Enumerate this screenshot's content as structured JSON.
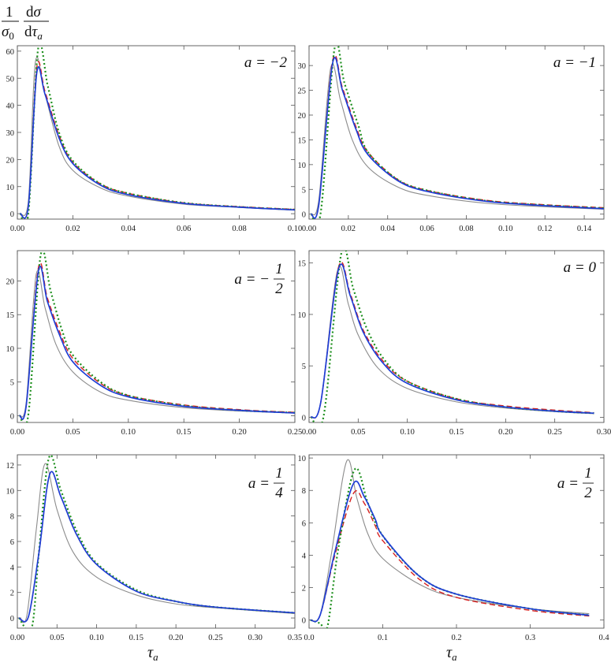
{
  "figure": {
    "ylabel": "1/σ0 dσ/dτa",
    "xlabel": "τa"
  },
  "colors": {
    "gray": "#8c8c8c",
    "red": "#d62020",
    "blue": "#1f3fd6",
    "green": "#1d8f1d"
  },
  "chart_data": [
    {
      "type": "line",
      "panel_label": "a = −2",
      "xlim": [
        0,
        0.1
      ],
      "ylim": [
        -2,
        62
      ],
      "xticks": [
        0.0,
        0.02,
        0.04,
        0.06,
        0.08,
        0.1
      ],
      "xtick_labels": [
        "0.00",
        "0.02",
        "0.04",
        "0.06",
        "0.08",
        "0.10"
      ],
      "yticks": [
        0,
        10,
        20,
        30,
        40,
        50,
        60
      ],
      "series": [
        {
          "color": "gray",
          "style": "solid",
          "x": [
            0.001,
            0.004,
            0.0065,
            0.01,
            0.015,
            0.02,
            0.03,
            0.04,
            0.06,
            0.08,
            0.1
          ],
          "y": [
            0,
            5,
            56,
            44,
            25,
            16,
            9.5,
            6.5,
            3.5,
            2.3,
            1.3
          ]
        },
        {
          "color": "red",
          "style": "dashed",
          "x": [
            0.001,
            0.004,
            0.007,
            0.01,
            0.015,
            0.02,
            0.03,
            0.04,
            0.06,
            0.08,
            0.1
          ],
          "y": [
            0,
            3,
            54,
            45,
            29,
            19,
            11,
            7.5,
            4,
            2.6,
            1.6
          ]
        },
        {
          "color": "blue",
          "style": "solid",
          "x": [
            0.001,
            0.004,
            0.007,
            0.01,
            0.015,
            0.02,
            0.03,
            0.04,
            0.06,
            0.08,
            0.1
          ],
          "y": [
            0,
            3,
            52,
            44,
            28,
            18.5,
            10.5,
            7,
            3.8,
            2.4,
            1.4
          ]
        },
        {
          "color": "green",
          "style": "dotted",
          "x": [
            0.001,
            0.004,
            0.0075,
            0.011,
            0.015,
            0.02,
            0.03,
            0.04,
            0.06,
            0.08,
            0.1
          ],
          "y": [
            0,
            0.5,
            61,
            47,
            30,
            19.5,
            11,
            7.5,
            4,
            2.5,
            1.5
          ]
        }
      ]
    },
    {
      "type": "line",
      "panel_label": "a = −1",
      "xlim": [
        0,
        0.15
      ],
      "ylim": [
        -1,
        34
      ],
      "xticks": [
        0.0,
        0.02,
        0.04,
        0.06,
        0.08,
        0.1,
        0.12,
        0.14
      ],
      "xtick_labels": [
        "0.00",
        "0.02",
        "0.04",
        "0.06",
        "0.08",
        "0.10",
        "0.12",
        "0.14"
      ],
      "yticks": [
        0,
        5,
        10,
        15,
        20,
        25,
        30
      ],
      "series": [
        {
          "color": "gray",
          "style": "solid",
          "x": [
            0.001,
            0.005,
            0.011,
            0.016,
            0.022,
            0.03,
            0.045,
            0.06,
            0.09,
            0.12,
            0.15
          ],
          "y": [
            0,
            3,
            29.5,
            23,
            15,
            9.5,
            5.5,
            3.8,
            2.2,
            1.5,
            1
          ]
        },
        {
          "color": "red",
          "style": "dashed",
          "x": [
            0.001,
            0.005,
            0.012,
            0.017,
            0.024,
            0.03,
            0.045,
            0.06,
            0.09,
            0.12,
            0.15
          ],
          "y": [
            0,
            2,
            31,
            25.5,
            17.5,
            12.5,
            7,
            4.8,
            2.8,
            1.9,
            1.3
          ]
        },
        {
          "color": "blue",
          "style": "solid",
          "x": [
            0.001,
            0.005,
            0.012,
            0.017,
            0.024,
            0.03,
            0.045,
            0.06,
            0.09,
            0.12,
            0.15
          ],
          "y": [
            0,
            2,
            30.5,
            25,
            17,
            12,
            6.8,
            4.6,
            2.6,
            1.7,
            1.1
          ]
        },
        {
          "color": "green",
          "style": "dotted",
          "x": [
            0.001,
            0.006,
            0.013,
            0.018,
            0.025,
            0.03,
            0.045,
            0.06,
            0.09,
            0.12,
            0.15
          ],
          "y": [
            0,
            0.5,
            33.5,
            26.5,
            18,
            12.5,
            7,
            4.8,
            2.7,
            1.8,
            1.2
          ]
        }
      ]
    },
    {
      "type": "line",
      "panel_label": "a = −1/2",
      "xlim": [
        0,
        0.25
      ],
      "ylim": [
        -1,
        24.5
      ],
      "xticks": [
        0.0,
        0.05,
        0.1,
        0.15,
        0.2,
        0.25
      ],
      "xtick_labels": [
        "0.00",
        "0.05",
        "0.10",
        "0.15",
        "0.20",
        "0.25"
      ],
      "yticks": [
        0,
        5,
        10,
        15,
        20
      ],
      "series": [
        {
          "color": "gray",
          "style": "solid",
          "x": [
            0.002,
            0.008,
            0.017,
            0.025,
            0.035,
            0.05,
            0.075,
            0.1,
            0.15,
            0.2,
            0.25
          ],
          "y": [
            0,
            2,
            21,
            16,
            10.5,
            6.5,
            3.5,
            2.3,
            1.2,
            0.7,
            0.4
          ]
        },
        {
          "color": "red",
          "style": "dashed",
          "x": [
            0.002,
            0.008,
            0.019,
            0.027,
            0.038,
            0.05,
            0.075,
            0.1,
            0.15,
            0.2,
            0.25
          ],
          "y": [
            0,
            1.5,
            22,
            17.5,
            12.5,
            8.5,
            4.8,
            3,
            1.6,
            0.9,
            0.5
          ]
        },
        {
          "color": "blue",
          "style": "solid",
          "x": [
            0.002,
            0.008,
            0.019,
            0.027,
            0.038,
            0.05,
            0.075,
            0.1,
            0.15,
            0.2,
            0.25
          ],
          "y": [
            0,
            1.5,
            21.5,
            17,
            12,
            8,
            4.5,
            2.8,
            1.4,
            0.8,
            0.4
          ]
        },
        {
          "color": "green",
          "style": "dotted",
          "x": [
            0.002,
            0.01,
            0.021,
            0.03,
            0.04,
            0.05,
            0.075,
            0.1,
            0.15,
            0.2,
            0.25
          ],
          "y": [
            0,
            0.3,
            23.8,
            18.5,
            12.8,
            9,
            5,
            3,
            1.5,
            0.8,
            0.45
          ]
        }
      ]
    },
    {
      "type": "line",
      "panel_label": "a = 0",
      "xlim": [
        0,
        0.3
      ],
      "ylim": [
        -0.5,
        16.2
      ],
      "xticks": [
        0.0,
        0.05,
        0.1,
        0.15,
        0.2,
        0.25,
        0.3
      ],
      "xtick_labels": [
        "0.00",
        "0.05",
        "0.10",
        "0.15",
        "0.20",
        "0.25",
        "0.30"
      ],
      "yticks": [
        0,
        5,
        10,
        15
      ],
      "series": [
        {
          "color": "gray",
          "style": "solid",
          "x": [
            0.002,
            0.012,
            0.029,
            0.04,
            0.05,
            0.07,
            0.1,
            0.15,
            0.2,
            0.25,
            0.29
          ],
          "y": [
            0,
            1.5,
            14.3,
            11,
            8,
            4.8,
            2.8,
            1.5,
            0.9,
            0.55,
            0.35
          ]
        },
        {
          "color": "red",
          "style": "dashed",
          "x": [
            0.002,
            0.012,
            0.03,
            0.042,
            0.055,
            0.075,
            0.1,
            0.15,
            0.2,
            0.25,
            0.29
          ],
          "y": [
            0,
            1.5,
            14.6,
            12,
            8.5,
            5.5,
            3.5,
            1.8,
            1.1,
            0.7,
            0.45
          ]
        },
        {
          "color": "blue",
          "style": "solid",
          "x": [
            0.002,
            0.012,
            0.03,
            0.042,
            0.055,
            0.075,
            0.1,
            0.15,
            0.2,
            0.25,
            0.29
          ],
          "y": [
            0,
            1.5,
            14.4,
            11.8,
            8.3,
            5.3,
            3.3,
            1.7,
            1,
            0.6,
            0.4
          ]
        },
        {
          "color": "green",
          "style": "dotted",
          "x": [
            0.002,
            0.015,
            0.033,
            0.045,
            0.058,
            0.075,
            0.1,
            0.15,
            0.2,
            0.25,
            0.29
          ],
          "y": [
            0,
            0.2,
            16,
            12.5,
            8.8,
            5.8,
            3.5,
            1.8,
            1,
            0.6,
            0.4
          ]
        }
      ]
    },
    {
      "type": "line",
      "panel_label": "a = 1/4",
      "xlim": [
        0,
        0.35
      ],
      "ylim": [
        -0.8,
        12.8
      ],
      "xticks": [
        0.0,
        0.05,
        0.1,
        0.15,
        0.2,
        0.25,
        0.3,
        0.35
      ],
      "xtick_labels": [
        "0.00",
        "0.05",
        "0.10",
        "0.15",
        "0.20",
        "0.25",
        "0.30",
        "0.35"
      ],
      "yticks": [
        0,
        2,
        4,
        6,
        8,
        10,
        12
      ],
      "series": [
        {
          "color": "gray",
          "style": "solid",
          "x": [
            0.002,
            0.012,
            0.024,
            0.035,
            0.05,
            0.07,
            0.1,
            0.15,
            0.2,
            0.25,
            0.35
          ],
          "y": [
            0,
            0.2,
            7,
            12.1,
            8.5,
            5.2,
            3.2,
            1.8,
            1.1,
            0.8,
            0.35
          ]
        },
        {
          "color": "red",
          "style": "dashed",
          "x": [
            0.002,
            0.014,
            0.027,
            0.041,
            0.055,
            0.075,
            0.1,
            0.15,
            0.2,
            0.25,
            0.35
          ],
          "y": [
            0,
            0.1,
            5,
            11.3,
            9.5,
            6.5,
            4.2,
            2.1,
            1.3,
            0.85,
            0.4
          ]
        },
        {
          "color": "blue",
          "style": "solid",
          "x": [
            0.002,
            0.014,
            0.027,
            0.041,
            0.055,
            0.075,
            0.1,
            0.15,
            0.2,
            0.25,
            0.35
          ],
          "y": [
            0,
            0.1,
            5,
            11.3,
            9.5,
            6.5,
            4.2,
            2.1,
            1.3,
            0.85,
            0.4
          ]
        },
        {
          "color": "green",
          "style": "dotted",
          "x": [
            0.002,
            0.018,
            0.027,
            0.04,
            0.055,
            0.075,
            0.1,
            0.15,
            0.2,
            0.25,
            0.35
          ],
          "y": [
            0,
            -0.8,
            5,
            12.6,
            10,
            6.8,
            4.3,
            2.2,
            1.3,
            0.85,
            0.4
          ]
        }
      ]
    },
    {
      "type": "line",
      "panel_label": "a = 1/2",
      "xlim": [
        0,
        0.4
      ],
      "ylim": [
        -0.5,
        10.2
      ],
      "xticks": [
        0.0,
        0.1,
        0.2,
        0.3,
        0.4
      ],
      "xtick_labels": [
        "0.0",
        "0.1",
        "0.2",
        "0.3",
        "0.4"
      ],
      "yticks": [
        0,
        2,
        4,
        6,
        8,
        10
      ],
      "series": [
        {
          "color": "gray",
          "style": "solid",
          "x": [
            0.002,
            0.015,
            0.03,
            0.051,
            0.065,
            0.08,
            0.1,
            0.15,
            0.2,
            0.3,
            0.38
          ],
          "y": [
            0,
            0.3,
            4,
            9.8,
            7.5,
            5.3,
            3.8,
            2.2,
            1.4,
            0.7,
            0.4
          ]
        },
        {
          "color": "red",
          "style": "dashed",
          "x": [
            0.002,
            0.015,
            0.035,
            0.06,
            0.075,
            0.09,
            0.1,
            0.15,
            0.2,
            0.3,
            0.38
          ],
          "y": [
            0,
            0.3,
            4,
            7.8,
            7.2,
            5.8,
            4.9,
            2.5,
            1.4,
            0.6,
            0.25
          ]
        },
        {
          "color": "blue",
          "style": "solid",
          "x": [
            0.002,
            0.015,
            0.035,
            0.06,
            0.075,
            0.09,
            0.1,
            0.15,
            0.2,
            0.3,
            0.38
          ],
          "y": [
            0,
            0.3,
            4.2,
            8.4,
            7.6,
            6.2,
            5.2,
            2.7,
            1.6,
            0.7,
            0.3
          ]
        },
        {
          "color": "green",
          "style": "dotted",
          "x": [
            0.002,
            0.015,
            0.025,
            0.04,
            0.062,
            0.08,
            0.1,
            0.15,
            0.2,
            0.3,
            0.38
          ],
          "y": [
            0,
            -0.2,
            -0.4,
            4.5,
            9.3,
            7.2,
            5.2,
            2.7,
            1.6,
            0.7,
            0.3
          ]
        }
      ]
    }
  ]
}
